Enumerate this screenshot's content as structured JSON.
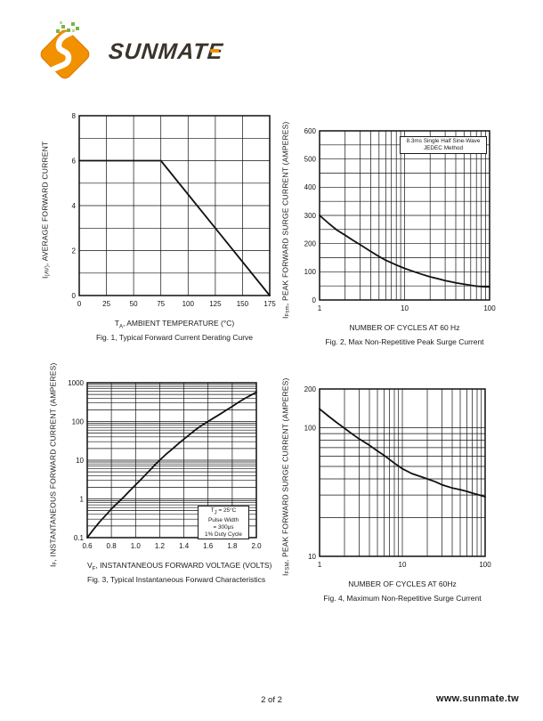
{
  "logo": {
    "text_main": "SUNMAT",
    "text_last": "E"
  },
  "colors": {
    "accent_orange": "#F29100",
    "logo_green": "#7CB342",
    "logo_text": "#3A342B",
    "ink": "#1A1A1A"
  },
  "footer": {
    "page_indicator": "2 of 2",
    "website": "www.sunmate.tw"
  },
  "chart_data": [
    {
      "id": "fig1",
      "type": "line",
      "caption": "Fig. 1, Typical Forward Current Derating Curve",
      "xlabel": {
        "pre": "T",
        "sub": "A",
        "rest": ", AMBIENT TEMPERATURE (°C)"
      },
      "ylabel": {
        "pre": "I",
        "sub": "(AV)",
        "rest": ", AVERAGE FORWARD CURRENT"
      },
      "x_scale": "linear",
      "y_scale": "linear",
      "xlim": [
        0,
        175
      ],
      "ylim": [
        0,
        8
      ],
      "x_grid_step": 25,
      "y_grid_step": 1,
      "x_ticks": [
        [
          0,
          "0"
        ],
        [
          25,
          "25"
        ],
        [
          50,
          "50"
        ],
        [
          75,
          "75"
        ],
        [
          100,
          "100"
        ],
        [
          125,
          "125"
        ],
        [
          150,
          "150"
        ],
        [
          175,
          "175"
        ]
      ],
      "y_ticks": [
        [
          0,
          "0"
        ],
        [
          2,
          "2"
        ],
        [
          4,
          "4"
        ],
        [
          6,
          "6"
        ],
        [
          8,
          "8"
        ]
      ],
      "grid": true,
      "series": [
        {
          "name": "average forward current derating",
          "points": [
            [
              0,
              6
            ],
            [
              75,
              6
            ],
            [
              175,
              0
            ]
          ]
        }
      ]
    },
    {
      "id": "fig2",
      "type": "line",
      "caption": "Fig. 2, Max Non-Repetitive Peak Surge Current",
      "xlabel": {
        "pre": "",
        "sub": "",
        "rest": "NUMBER OF CYCLES AT 60 Hz"
      },
      "ylabel": {
        "pre": "I",
        "sub": "Fsm",
        "rest": ", PEAK FORWARD SURGE CURRENT (AMPERES)"
      },
      "x_scale": "log",
      "y_scale": "linear",
      "xlim": [
        1,
        100
      ],
      "ylim": [
        0,
        600
      ],
      "y_grid_step": 50,
      "x_ticks": [
        [
          1,
          "1"
        ],
        [
          10,
          "10"
        ],
        [
          100,
          "100"
        ]
      ],
      "y_ticks": [
        [
          0,
          "0"
        ],
        [
          100,
          "100"
        ],
        [
          200,
          "200"
        ],
        [
          300,
          "300"
        ],
        [
          400,
          "400"
        ],
        [
          500,
          "500"
        ],
        [
          600,
          "600"
        ]
      ],
      "grid": true,
      "annotation": [
        "8.3ms Single Half Sine-Wave",
        "JEDEC Method"
      ],
      "series": [
        {
          "name": "peak forward surge current",
          "points": [
            [
              1,
              300
            ],
            [
              1.3,
              270
            ],
            [
              1.6,
              248
            ],
            [
              2,
              230
            ],
            [
              2.5,
              211
            ],
            [
              3,
              196
            ],
            [
              4,
              172
            ],
            [
              5,
              154
            ],
            [
              6,
              141
            ],
            [
              8,
              124
            ],
            [
              10,
              112
            ],
            [
              13,
              100
            ],
            [
              16,
              91
            ],
            [
              20,
              82
            ],
            [
              25,
              75
            ],
            [
              30,
              69
            ],
            [
              40,
              61
            ],
            [
              50,
              56
            ],
            [
              60,
              52
            ],
            [
              70,
              49
            ],
            [
              85,
              47
            ],
            [
              100,
              46
            ]
          ]
        }
      ]
    },
    {
      "id": "fig3",
      "type": "line",
      "caption": "Fig. 3, Typical Instantaneous Forward Characteristics",
      "xlabel": {
        "pre": "V",
        "sub": "F",
        "rest": ", INSTANTANEOUS FORWARD VOLTAGE (VOLTS)"
      },
      "ylabel": {
        "pre": "I",
        "sub": "F",
        "rest": ", INSTANTANEOUS FORWARD CURRENT (AMPERES)"
      },
      "x_scale": "linear",
      "y_scale": "log",
      "xlim": [
        0.6,
        2.0
      ],
      "ylim": [
        0.1,
        1000
      ],
      "x_grid_step": 0.2,
      "x_ticks": [
        [
          0.6,
          "0.6"
        ],
        [
          0.8,
          "0.8"
        ],
        [
          1.0,
          "1.0"
        ],
        [
          1.2,
          "1.2"
        ],
        [
          1.4,
          "1.4"
        ],
        [
          1.6,
          "1.6"
        ],
        [
          1.8,
          "1.8"
        ],
        [
          2.0,
          "2.0"
        ]
      ],
      "y_ticks": [
        [
          0.1,
          "0.1"
        ],
        [
          1,
          "1"
        ],
        [
          10,
          "10"
        ],
        [
          100,
          "100"
        ],
        [
          1000,
          "1000"
        ]
      ],
      "grid": true,
      "annotation_lines": [
        {
          "pre": "T",
          "sub": "J",
          "rest": " = 25°C"
        },
        {
          "pre": "",
          "sub": "",
          "rest": "Pulse Width"
        },
        {
          "pre": "",
          "sub": "",
          "rest": "= 300μs"
        },
        {
          "pre": "",
          "sub": "",
          "rest": "1% Duty Cycle"
        }
      ],
      "series": [
        {
          "name": "instantaneous forward characteristics",
          "points": [
            [
              0.6,
              0.1
            ],
            [
              0.65,
              0.16
            ],
            [
              0.7,
              0.25
            ],
            [
              0.75,
              0.37
            ],
            [
              0.8,
              0.55
            ],
            [
              0.85,
              0.78
            ],
            [
              0.9,
              1.1
            ],
            [
              0.95,
              1.6
            ],
            [
              1.0,
              2.3
            ],
            [
              1.05,
              3.3
            ],
            [
              1.1,
              4.8
            ],
            [
              1.15,
              7
            ],
            [
              1.2,
              10
            ],
            [
              1.25,
              14
            ],
            [
              1.3,
              19
            ],
            [
              1.35,
              26
            ],
            [
              1.4,
              35
            ],
            [
              1.45,
              47
            ],
            [
              1.5,
              62
            ],
            [
              1.55,
              80
            ],
            [
              1.6,
              100
            ],
            [
              1.65,
              125
            ],
            [
              1.7,
              155
            ],
            [
              1.75,
              195
            ],
            [
              1.8,
              245
            ],
            [
              1.85,
              310
            ],
            [
              1.9,
              385
            ],
            [
              1.95,
              470
            ],
            [
              2.0,
              570
            ]
          ]
        }
      ]
    },
    {
      "id": "fig4",
      "type": "line",
      "caption": "Fig. 4, Maximum Non-Repetitive Surge Current",
      "xlabel": {
        "pre": "",
        "sub": "",
        "rest": "NUMBER OF CYCLES AT 60Hz"
      },
      "ylabel": {
        "pre": "I",
        "sub": "FSM",
        "rest": ", PEAK FORWARD SURGE CURRENT (AMPERES)"
      },
      "x_scale": "log",
      "y_scale": "log",
      "xlim": [
        1,
        100
      ],
      "ylim": [
        10,
        200
      ],
      "x_ticks": [
        [
          1,
          "1"
        ],
        [
          10,
          "10"
        ],
        [
          100,
          "100"
        ]
      ],
      "y_ticks": [
        [
          10,
          "10"
        ],
        [
          100,
          "100"
        ],
        [
          200,
          "200"
        ]
      ],
      "grid": true,
      "series": [
        {
          "name": "maximum non-repetitive surge current",
          "points": [
            [
              1,
              140
            ],
            [
              1.3,
              122
            ],
            [
              1.6,
              110
            ],
            [
              2,
              99
            ],
            [
              2.5,
              89
            ],
            [
              3,
              82
            ],
            [
              4,
              73
            ],
            [
              5,
              66
            ],
            [
              6,
              61
            ],
            [
              8,
              53
            ],
            [
              10,
              48
            ],
            [
              13,
              44
            ],
            [
              16,
              42
            ],
            [
              20,
              40
            ],
            [
              25,
              38
            ],
            [
              30,
              36
            ],
            [
              40,
              34
            ],
            [
              50,
              33
            ],
            [
              60,
              32
            ],
            [
              70,
              31
            ],
            [
              85,
              30
            ],
            [
              100,
              29
            ]
          ]
        }
      ]
    }
  ]
}
